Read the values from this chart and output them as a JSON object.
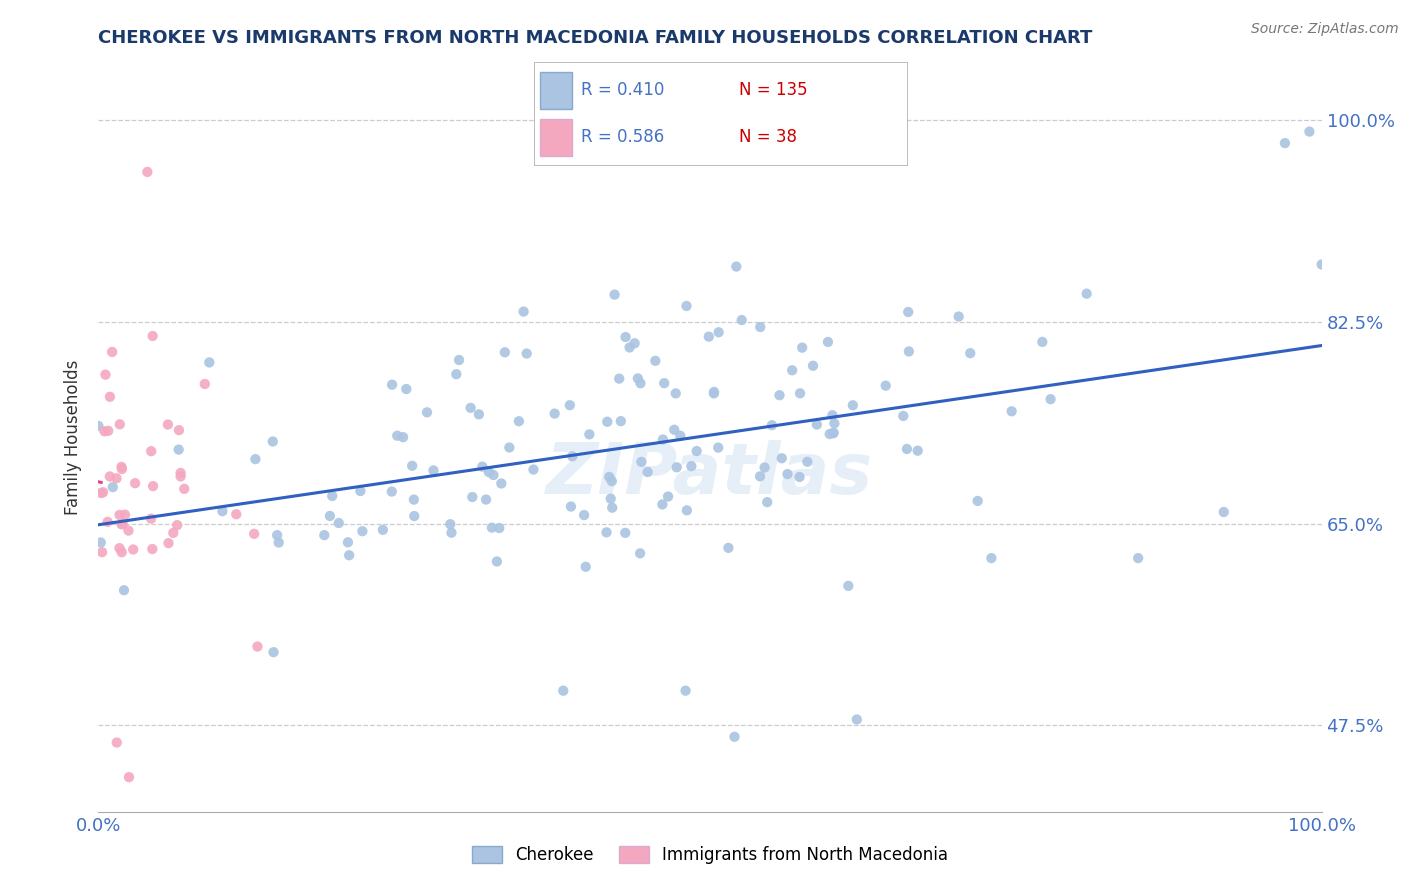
{
  "title": "CHEROKEE VS IMMIGRANTS FROM NORTH MACEDONIA FAMILY HOUSEHOLDS CORRELATION CHART",
  "source": "Source: ZipAtlas.com",
  "ylabel": "Family Households",
  "xmin": 0.0,
  "xmax": 1.0,
  "ymin": 0.4,
  "ymax": 1.05,
  "yticks": [
    0.475,
    0.65,
    0.825,
    1.0
  ],
  "ytick_labels": [
    "47.5%",
    "65.0%",
    "82.5%",
    "100.0%"
  ],
  "blue_color": "#aac4e2",
  "pink_color": "#f4a8c0",
  "blue_line_color": "#3060c0",
  "pink_line_color": "#e8408a",
  "blue_R": 0.41,
  "blue_N": 135,
  "pink_R": 0.586,
  "pink_N": 38,
  "watermark": "ZIPatlas",
  "legend_label_blue": "Cherokee",
  "legend_label_pink": "Immigrants from North Macedonia",
  "background_color": "#ffffff",
  "grid_color": "#cccccc",
  "title_color": "#1a3a6b",
  "axis_label_color": "#4472c4",
  "legend_R_color": "#4472c4",
  "legend_N_color": "#cc0000"
}
